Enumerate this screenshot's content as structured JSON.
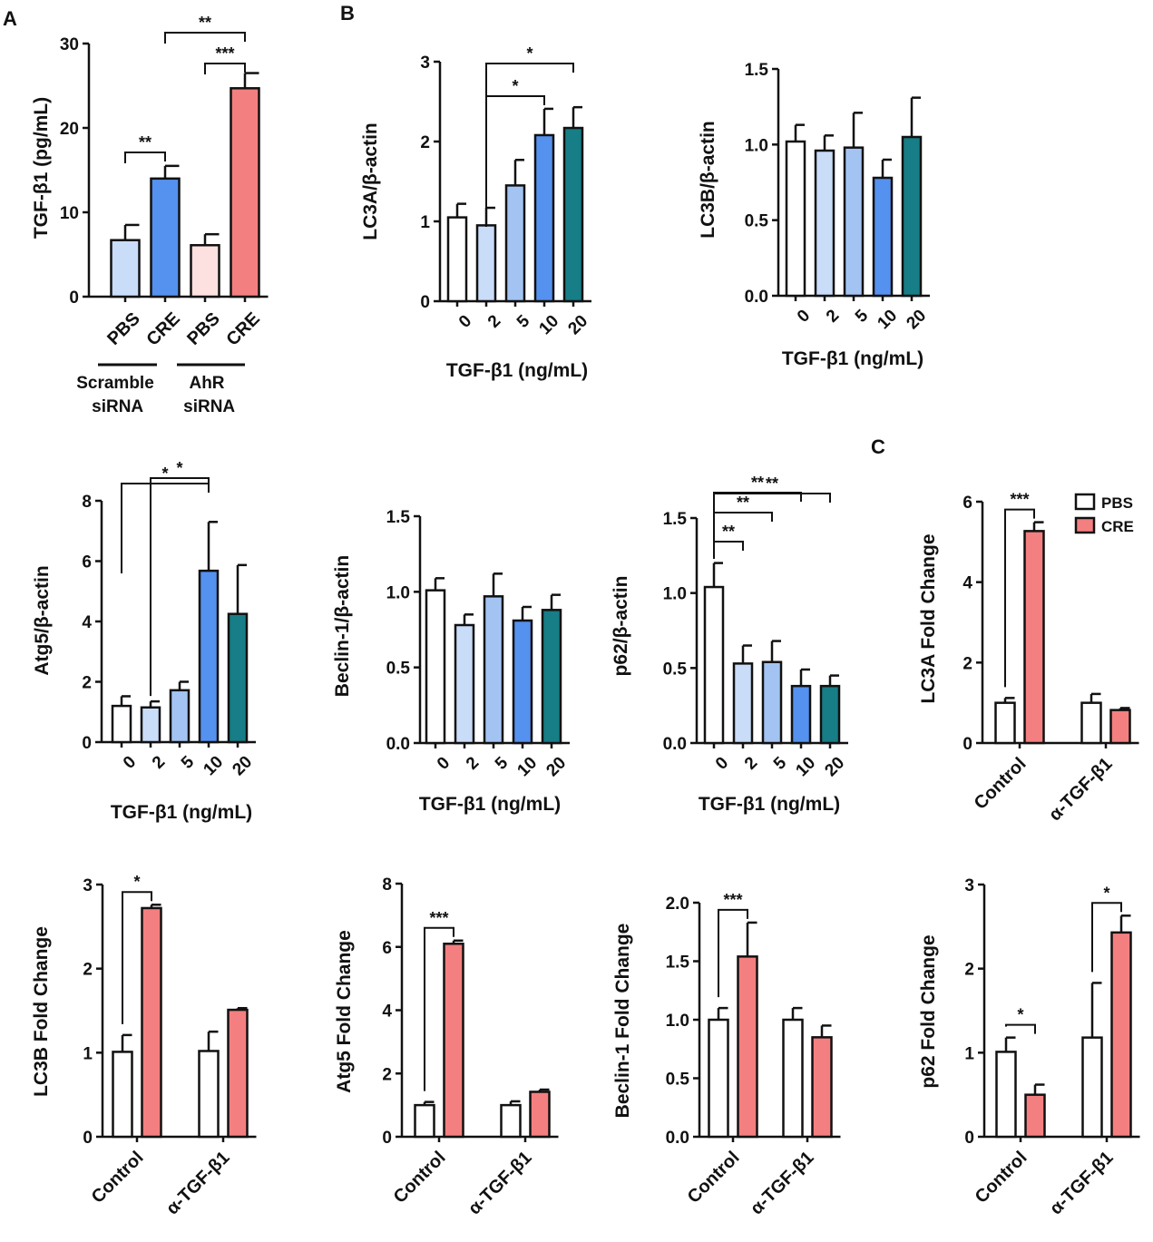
{
  "panel_letters": [
    "A",
    "B",
    "C"
  ],
  "colors": {
    "white": "#ffffff",
    "light_blue": "#c9dcf8",
    "mid_blue": "#a3c4f3",
    "blue": "#5591ee",
    "teal": "#177d86",
    "pink": "#fde1e1",
    "red": "#f47f80",
    "stroke": "#111111"
  },
  "chart_data": [
    {
      "id": "A",
      "type": "bar",
      "panel": "A",
      "categories": [
        "PBS",
        "CRE",
        "PBS",
        "CRE"
      ],
      "groups": [
        "Scramble siRNA",
        "AhR siRNA"
      ],
      "values": [
        6.7,
        14.0,
        6.1,
        24.7
      ],
      "errors": [
        1.8,
        1.5,
        1.3,
        1.8
      ],
      "colors": [
        "#c9dcf8",
        "#5591ee",
        "#fde1e1",
        "#f47f80"
      ],
      "ylabel": "TGF-β1 (pg/mL)",
      "xlabel": "",
      "ylim": [
        0,
        30
      ],
      "yticks": [
        "0",
        "10",
        "20",
        "30"
      ],
      "annotations": [
        {
          "from": 0,
          "to": 1,
          "label": "**"
        },
        {
          "from": 2,
          "to": 3,
          "label": "***"
        },
        {
          "from": 1,
          "to": 3,
          "label": "**"
        }
      ]
    },
    {
      "id": "B1",
      "type": "bar",
      "categories": [
        "0",
        "2",
        "5",
        "10",
        "20"
      ],
      "values": [
        1.05,
        0.95,
        1.45,
        2.08,
        2.17
      ],
      "errors": [
        0.17,
        0.22,
        0.32,
        0.33,
        0.26
      ],
      "colors": [
        "#ffffff",
        "#c9dcf8",
        "#a3c4f3",
        "#5591ee",
        "#177d86"
      ],
      "ylabel": "LC3A/β-actin",
      "xlabel": "TGF-β1 (ng/mL)",
      "ylim": [
        0,
        3
      ],
      "yticks": [
        "0",
        "1",
        "2",
        "3"
      ],
      "annotations": [
        {
          "from": 1,
          "to": 3,
          "label": "*"
        },
        {
          "from": 1,
          "to": 4,
          "label": "*"
        }
      ]
    },
    {
      "id": "B2",
      "type": "bar",
      "categories": [
        "0",
        "2",
        "5",
        "10",
        "20"
      ],
      "values": [
        1.02,
        0.96,
        0.98,
        0.78,
        1.05
      ],
      "errors": [
        0.11,
        0.1,
        0.23,
        0.12,
        0.26
      ],
      "colors": [
        "#ffffff",
        "#c9dcf8",
        "#a3c4f3",
        "#5591ee",
        "#177d86"
      ],
      "ylabel": "LC3B/β-actin",
      "xlabel": "TGF-β1 (ng/mL)",
      "ylim": [
        0,
        1.5
      ],
      "yticks": [
        "0.0",
        "0.5",
        "1.0",
        "1.5"
      ],
      "annotations": []
    },
    {
      "id": "B3",
      "type": "bar",
      "categories": [
        "0",
        "2",
        "5",
        "10",
        "20"
      ],
      "values": [
        1.2,
        1.15,
        1.72,
        5.68,
        4.25
      ],
      "errors": [
        0.32,
        0.2,
        0.28,
        1.62,
        1.62
      ],
      "colors": [
        "#ffffff",
        "#c9dcf8",
        "#a3c4f3",
        "#5591ee",
        "#177d86"
      ],
      "ylabel": "Atg5/β-actin",
      "xlabel": "TGF-β1 (ng/mL)",
      "ylim": [
        0,
        8
      ],
      "yticks": [
        "0",
        "2",
        "4",
        "6",
        "8"
      ],
      "annotations": [
        {
          "from": 1,
          "to": 3,
          "label": "*"
        },
        {
          "from": 0,
          "to": 3,
          "label": "*"
        }
      ]
    },
    {
      "id": "B4",
      "type": "bar",
      "categories": [
        "0",
        "2",
        "5",
        "10",
        "20"
      ],
      "values": [
        1.01,
        0.78,
        0.97,
        0.81,
        0.88
      ],
      "errors": [
        0.08,
        0.07,
        0.15,
        0.09,
        0.1
      ],
      "colors": [
        "#ffffff",
        "#c9dcf8",
        "#a3c4f3",
        "#5591ee",
        "#177d86"
      ],
      "ylabel": "Beclin-1/β-actin",
      "xlabel": "TGF-β1 (ng/mL)",
      "ylim": [
        0,
        1.5
      ],
      "yticks": [
        "0.0",
        "0.5",
        "1.0",
        "1.5"
      ],
      "annotations": []
    },
    {
      "id": "B5",
      "type": "bar",
      "categories": [
        "0",
        "2",
        "5",
        "10",
        "20"
      ],
      "values": [
        1.04,
        0.53,
        0.54,
        0.38,
        0.38
      ],
      "errors": [
        0.16,
        0.12,
        0.14,
        0.11,
        0.07
      ],
      "colors": [
        "#ffffff",
        "#c9dcf8",
        "#a3c4f3",
        "#5591ee",
        "#177d86"
      ],
      "ylabel": "p62/β-actin",
      "xlabel": "TGF-β1 (ng/mL)",
      "ylim": [
        0,
        1.5
      ],
      "yticks": [
        "0.0",
        "0.5",
        "1.0",
        "1.5"
      ],
      "annotations": [
        {
          "from": 0,
          "to": 1,
          "label": "**"
        },
        {
          "from": 0,
          "to": 2,
          "label": "**"
        },
        {
          "from": 0,
          "to": 3,
          "label": "**"
        },
        {
          "from": 0,
          "to": 4,
          "label": "**"
        }
      ]
    },
    {
      "id": "C1",
      "type": "grouped-bar",
      "categories": [
        "Control",
        "α-TGF-β1"
      ],
      "series": [
        {
          "name": "PBS",
          "values": [
            1.0,
            1.0
          ],
          "errors": [
            0.12,
            0.22
          ]
        },
        {
          "name": "CRE",
          "values": [
            5.27,
            0.82
          ],
          "errors": [
            0.22,
            0.05
          ]
        }
      ],
      "ylabel": "LC3A Fold Change",
      "ylim": [
        0,
        6
      ],
      "yticks": [
        "0",
        "2",
        "4",
        "6"
      ],
      "legend": [
        "PBS",
        "CRE"
      ],
      "annotations": [
        {
          "group": 0,
          "label": "***"
        }
      ]
    },
    {
      "id": "C2",
      "type": "grouped-bar",
      "categories": [
        "Control",
        "α-TGF-β1"
      ],
      "series": [
        {
          "name": "PBS",
          "values": [
            1.01,
            1.02
          ],
          "errors": [
            0.2,
            0.23
          ]
        },
        {
          "name": "CRE",
          "values": [
            2.72,
            1.51
          ],
          "errors": [
            0.04,
            0.02
          ]
        }
      ],
      "ylabel": "LC3B Fold Change",
      "ylim": [
        0,
        3
      ],
      "yticks": [
        "0",
        "1",
        "2",
        "3"
      ],
      "annotations": [
        {
          "group": 0,
          "label": "*"
        }
      ]
    },
    {
      "id": "C3",
      "type": "grouped-bar",
      "categories": [
        "Control",
        "α-TGF-β1"
      ],
      "series": [
        {
          "name": "PBS",
          "values": [
            1.0,
            1.0
          ],
          "errors": [
            0.1,
            0.12
          ]
        },
        {
          "name": "CRE",
          "values": [
            6.1,
            1.42
          ],
          "errors": [
            0.1,
            0.07
          ]
        }
      ],
      "ylabel": "Atg5 Fold Change",
      "ylim": [
        0,
        8
      ],
      "yticks": [
        "0",
        "2",
        "4",
        "6",
        "8"
      ],
      "annotations": [
        {
          "group": 0,
          "label": "***"
        }
      ]
    },
    {
      "id": "C4",
      "type": "grouped-bar",
      "categories": [
        "Control",
        "α-TGF-β1"
      ],
      "series": [
        {
          "name": "PBS",
          "values": [
            1.0,
            1.0
          ],
          "errors": [
            0.1,
            0.1
          ]
        },
        {
          "name": "CRE",
          "values": [
            1.54,
            0.85
          ],
          "errors": [
            0.29,
            0.1
          ]
        }
      ],
      "ylabel": "Beclin-1 Fold Change",
      "ylim": [
        0,
        2
      ],
      "yticks": [
        "0.0",
        "0.5",
        "1.0",
        "1.5",
        "2.0"
      ],
      "annotations": [
        {
          "group": 0,
          "label": "***"
        }
      ]
    },
    {
      "id": "C5",
      "type": "grouped-bar",
      "categories": [
        "Control",
        "α-TGF-β1"
      ],
      "series": [
        {
          "name": "PBS",
          "values": [
            1.01,
            1.18
          ],
          "errors": [
            0.17,
            0.65
          ]
        },
        {
          "name": "CRE",
          "values": [
            0.5,
            2.43
          ],
          "errors": [
            0.12,
            0.2
          ]
        }
      ],
      "ylabel": "p62 Fold Change",
      "ylim": [
        0,
        3
      ],
      "yticks": [
        "0",
        "1",
        "2",
        "3"
      ],
      "annotations": [
        {
          "group": 0,
          "label": "*"
        },
        {
          "group": 1,
          "label": "*"
        }
      ]
    }
  ]
}
